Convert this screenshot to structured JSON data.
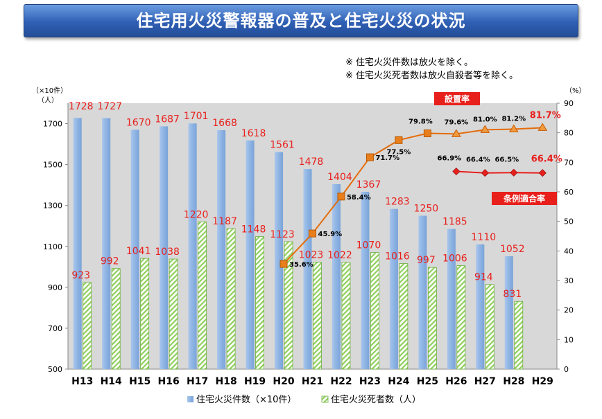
{
  "header": {
    "title": "住宅用火災警報器の普及と住宅火災の状況",
    "note1": "※  住宅火災件数は放火を除く。",
    "note2": "※  住宅火災死者数は放火自殺者等を除く。"
  },
  "chart_data": {
    "type": "bar",
    "categories": [
      "H13",
      "H14",
      "H15",
      "H16",
      "H17",
      "H18",
      "H19",
      "H20",
      "H21",
      "H22",
      "H23",
      "H24",
      "H25",
      "H26",
      "H27",
      "H28",
      "H29"
    ],
    "left_axis": {
      "unit_top": "（×10件）",
      "unit_bottom": "（人）",
      "ylim": [
        500,
        1800
      ],
      "ticks": [
        500,
        700,
        900,
        1100,
        1300,
        1500,
        1700
      ]
    },
    "right_axis": {
      "unit": "（%）",
      "ylim": [
        0,
        90
      ],
      "ticks": [
        0,
        10,
        20,
        30,
        40,
        50,
        60,
        70,
        80,
        90
      ]
    },
    "series": [
      {
        "name": "住宅火災件数（×10件）",
        "kind": "bar",
        "color": "#8eb4e3",
        "values": [
          1728,
          1727,
          1670,
          1687,
          1701,
          1668,
          1618,
          1561,
          1478,
          1404,
          1367,
          1283,
          1250,
          1185,
          1110,
          1052,
          null
        ]
      },
      {
        "name": "住宅火災死者数（人）",
        "kind": "bar",
        "color": "#9bd26e",
        "values": [
          923,
          992,
          1041,
          1038,
          1220,
          1187,
          1148,
          1123,
          1023,
          1022,
          1070,
          1016,
          997,
          1006,
          914,
          831,
          null
        ]
      },
      {
        "name": "設置率",
        "kind": "line",
        "axis": "right",
        "color": "#e46c0a",
        "values": [
          null,
          null,
          null,
          null,
          null,
          null,
          null,
          35.6,
          45.9,
          58.4,
          71.7,
          77.5,
          79.8,
          79.6,
          81.0,
          81.2,
          81.7
        ],
        "labels": [
          null,
          null,
          null,
          null,
          null,
          null,
          null,
          "35.6%",
          "45.9%",
          "58.4%",
          "71.7%",
          "77.5%",
          "79.8%",
          "79.6%",
          "81.0%",
          "81.2%",
          "81.7%"
        ]
      },
      {
        "name": "条例適合率",
        "kind": "line",
        "axis": "right",
        "color": "#e8201c",
        "values": [
          null,
          null,
          null,
          null,
          null,
          null,
          null,
          null,
          null,
          null,
          null,
          null,
          null,
          66.9,
          66.4,
          66.5,
          66.4
        ],
        "labels": [
          null,
          null,
          null,
          null,
          null,
          null,
          null,
          null,
          null,
          null,
          null,
          null,
          null,
          "66.9%",
          "66.4%",
          "66.5%",
          "66.4%"
        ]
      }
    ],
    "bar1_labels": [
      "1728",
      "1727",
      "1670",
      "1687",
      "1701",
      "1668",
      "1618",
      "1561",
      "1478",
      "1404",
      "1367",
      "1283",
      "1250",
      "1185",
      "1110",
      "1052",
      ""
    ],
    "bar2_labels": [
      "923",
      "992",
      "1041",
      "1038",
      "1220",
      "1187",
      "1148",
      "1123",
      "1023",
      "1022",
      "1070",
      "1016",
      "997",
      "1006",
      "914",
      "831",
      ""
    ],
    "tags": {
      "setting_rate": "設置率",
      "compliance_rate": "条例適合率"
    },
    "legend": [
      "住宅火災件数（×10件）",
      "住宅火災死者数（人）"
    ],
    "grid": false,
    "legend_placement": "bottom"
  }
}
